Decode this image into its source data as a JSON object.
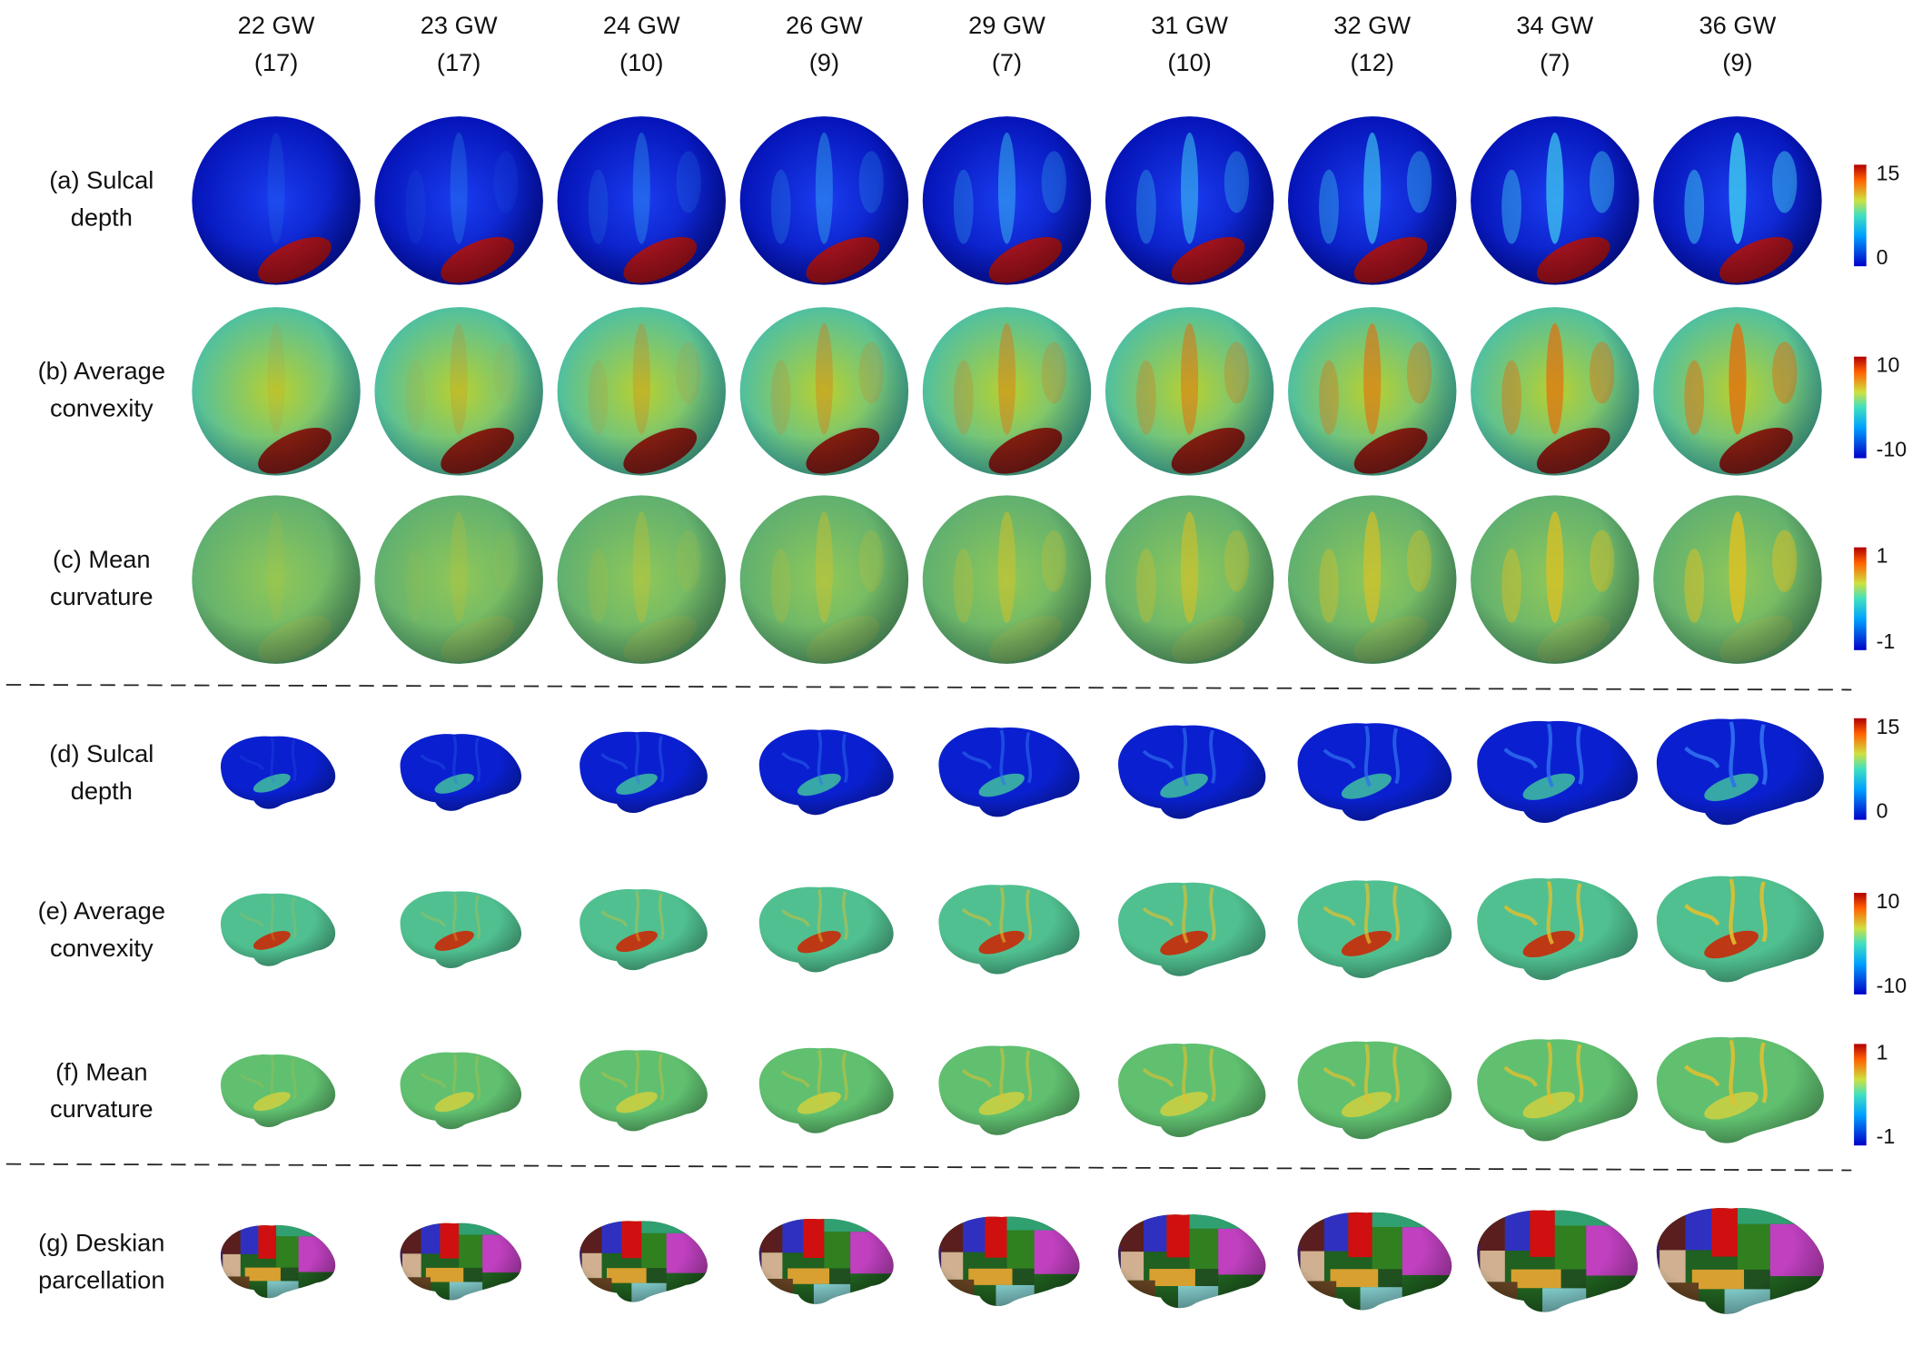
{
  "columns": [
    {
      "label": "22 GW",
      "count": "(17)"
    },
    {
      "label": "23 GW",
      "count": "(17)"
    },
    {
      "label": "24 GW",
      "count": "(10)"
    },
    {
      "label": "26 GW",
      "count": "(9)"
    },
    {
      "label": "29 GW",
      "count": "(7)"
    },
    {
      "label": "31 GW",
      "count": "(10)"
    },
    {
      "label": "32 GW",
      "count": "(12)"
    },
    {
      "label": "34 GW",
      "count": "(7)"
    },
    {
      "label": "36 GW",
      "count": "(9)"
    }
  ],
  "rows": [
    {
      "label": [
        "(a) Sulcal",
        "depth"
      ],
      "colorbar": {
        "max": 15,
        "min": 0
      }
    },
    {
      "label": [
        "(b) Average",
        "convexity"
      ],
      "colorbar": {
        "max": 10,
        "min": -10
      }
    },
    {
      "label": [
        "(c) Mean",
        "curvature"
      ],
      "colorbar": {
        "max": 1,
        "min": -1
      }
    },
    {
      "label": [
        "(d) Sulcal",
        "depth"
      ],
      "colorbar": {
        "max": 15,
        "min": 0
      }
    },
    {
      "label": [
        "(e) Average",
        "convexity"
      ],
      "colorbar": {
        "max": 10,
        "min": -10
      }
    },
    {
      "label": [
        "(f) Mean",
        "curvature"
      ],
      "colorbar": {
        "max": 1,
        "min": -1
      }
    },
    {
      "label": [
        "(g) Deskian",
        "parcellation"
      ]
    }
  ]
}
